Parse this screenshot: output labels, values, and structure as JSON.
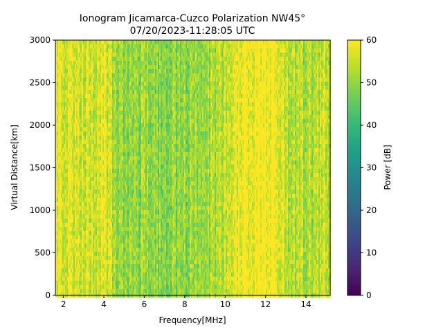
{
  "chart_data": {
    "type": "heatmap",
    "title_line1": "Ionogram Jicamarca-Cuzco Polarization NW45°",
    "title_line2": "07/20/2023-11:28:05 UTC",
    "xlabel": "Frequency[MHz]",
    "ylabel": "Virtual Distance[km]",
    "xlim": [
      1.6,
      15.2
    ],
    "ylim": [
      0,
      3000
    ],
    "xticks": [
      2,
      4,
      6,
      8,
      10,
      12,
      14
    ],
    "yticks": [
      0,
      500,
      1000,
      1500,
      2000,
      2500,
      3000
    ],
    "colorbar": {
      "label": "Power [dB]",
      "range": [
        0,
        60
      ],
      "ticks": [
        0,
        10,
        20,
        30,
        40,
        50,
        60
      ],
      "colormap": "viridis"
    },
    "colormap_stops": [
      "#440154",
      "#482878",
      "#3e4989",
      "#31688e",
      "#26828e",
      "#1f9e89",
      "#35b779",
      "#6ece58",
      "#b5de2b",
      "#fde725"
    ],
    "power_profile_db": {
      "frequencies_mhz": [
        1.6,
        2.0,
        2.5,
        3.0,
        3.5,
        4.0,
        4.3,
        4.6,
        5.0,
        5.5,
        6.0,
        6.5,
        7.0,
        7.5,
        8.0,
        8.5,
        9.0,
        9.5,
        10.0,
        10.4,
        10.7,
        11.0,
        11.5,
        12.0,
        12.5,
        12.8,
        13.0,
        13.5,
        14.0,
        14.5,
        15.0,
        15.2
      ],
      "mean_power_db": [
        59,
        58,
        57,
        56,
        56,
        57,
        54,
        50,
        49,
        50,
        51,
        49,
        49,
        50,
        50,
        51,
        51,
        52,
        54,
        57,
        60,
        60,
        60,
        60,
        59,
        56,
        54,
        53,
        53,
        53,
        54,
        54
      ]
    }
  }
}
